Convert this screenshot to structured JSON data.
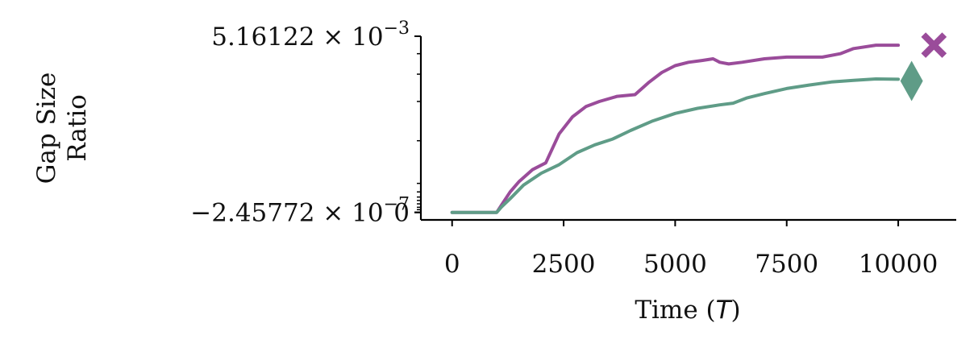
{
  "chart_data": {
    "type": "line",
    "xlabel_prefix": "Time (",
    "xlabel_var": "T",
    "xlabel_suffix": ")",
    "ylabel_lines": [
      "Gap Size",
      "Ratio"
    ],
    "xlim": [
      -700,
      11300
    ],
    "ylim": [
      -0.00022,
      0.00516122
    ],
    "x_ticks": [
      {
        "value": 0,
        "label": "0"
      },
      {
        "value": 2500,
        "label": "2500"
      },
      {
        "value": 5000,
        "label": "5000"
      },
      {
        "value": 7500,
        "label": "7500"
      },
      {
        "value": 10000,
        "label": "10000"
      }
    ],
    "y_tick_labels": [
      {
        "value": 0.00516122,
        "label_base": "5.16122 × 10",
        "label_exp": "−3"
      },
      {
        "value": -2.45772e-07,
        "label_base": "−2.45772 × 10",
        "label_exp": "−7"
      },
      {
        "value": 0,
        "label_base": "0",
        "label_exp": ""
      }
    ],
    "y_minor_ticks": [
      0.00465,
      0.00405,
      0.00325,
      0.0021,
      0.00085,
      0.0006,
      0.00045,
      0.00035,
      0.00025,
      0.00015,
      8e-05
    ],
    "series": [
      {
        "color": "#9a4c9a",
        "marker": "x",
        "marker_x": 10800,
        "marker_y": 0.0049,
        "x": [
          0,
          1000,
          1100,
          1300,
          1500,
          1800,
          2100,
          2400,
          2700,
          3000,
          3300,
          3700,
          4100,
          4400,
          4700,
          5000,
          5300,
          5600,
          5850,
          6000,
          6200,
          6500,
          7000,
          7500,
          8000,
          8300,
          8700,
          9000,
          9500,
          10000
        ],
        "y": [
          0,
          0,
          0.0002,
          0.0006,
          0.0009,
          0.00125,
          0.00145,
          0.0023,
          0.0028,
          0.0031,
          0.00325,
          0.0034,
          0.00345,
          0.0038,
          0.0041,
          0.0043,
          0.0044,
          0.00445,
          0.0045,
          0.0044,
          0.00435,
          0.0044,
          0.0045,
          0.00455,
          0.00455,
          0.00455,
          0.00465,
          0.0048,
          0.0049,
          0.0049
        ]
      },
      {
        "color": "#5f9c87",
        "marker": "d",
        "marker_x": 10300,
        "marker_y": 0.00385,
        "x": [
          0,
          1000,
          1100,
          1300,
          1600,
          2000,
          2400,
          2800,
          3200,
          3600,
          4000,
          4500,
          5000,
          5500,
          6000,
          6300,
          6600,
          7000,
          7500,
          8000,
          8500,
          9000,
          9500,
          10000
        ],
        "y": [
          0,
          0,
          0.00015,
          0.0004,
          0.0008,
          0.00115,
          0.0014,
          0.00175,
          0.00198,
          0.00215,
          0.0024,
          0.00268,
          0.0029,
          0.00305,
          0.00315,
          0.0032,
          0.00335,
          0.00348,
          0.00363,
          0.00373,
          0.00382,
          0.00387,
          0.00391,
          0.0039
        ]
      }
    ]
  }
}
